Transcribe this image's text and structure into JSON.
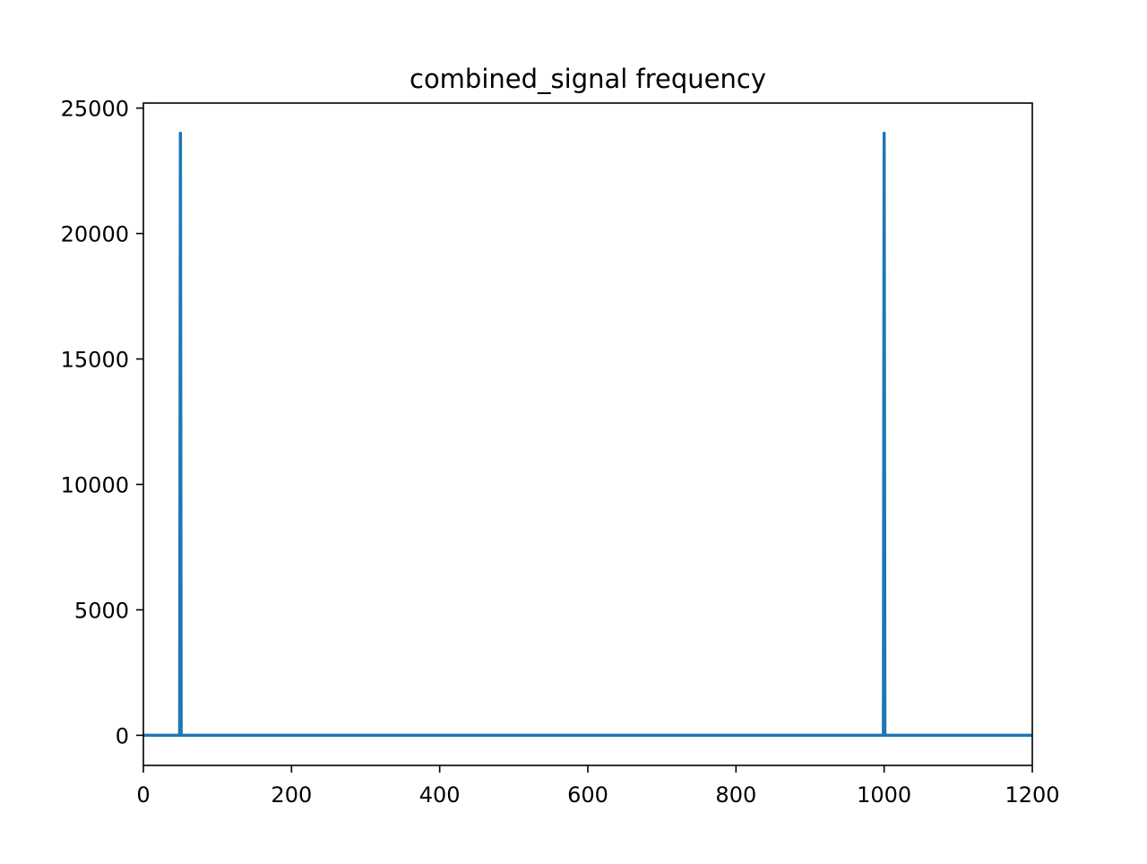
{
  "chart_data": {
    "type": "line",
    "title": "combined_signal frequency",
    "xlabel": "",
    "ylabel": "",
    "xlim": [
      0,
      1200
    ],
    "ylim": [
      -1200,
      25200
    ],
    "x_ticks": [
      0,
      200,
      400,
      600,
      800,
      1000,
      1200
    ],
    "x_tick_labels": [
      "0",
      "200",
      "400",
      "600",
      "800",
      "1000",
      "1200"
    ],
    "y_ticks": [
      0,
      5000,
      10000,
      15000,
      20000,
      25000
    ],
    "y_tick_labels": [
      "0",
      "5000",
      "10000",
      "15000",
      "20000",
      "25000"
    ],
    "grid": false,
    "legend": "none",
    "series": [
      {
        "color": "#1f77b4",
        "x": [
          0,
          48,
          49,
          50,
          51,
          52,
          998,
          999,
          1000,
          1001,
          1002,
          1200
        ],
        "y": [
          0,
          0,
          0,
          24000,
          0,
          0,
          0,
          0,
          24000,
          0,
          0,
          0
        ]
      }
    ]
  }
}
